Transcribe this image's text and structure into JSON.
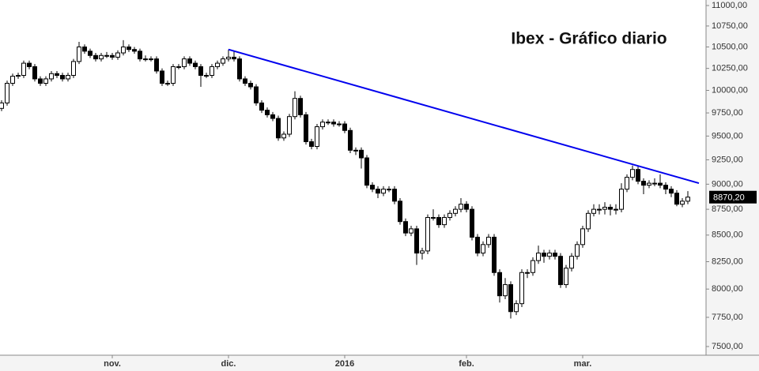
{
  "chart_data": {
    "type": "candlestick",
    "title": "Ibex - Gráfico diario",
    "log_scale": true,
    "up_color": "#ffffff",
    "down_color": "#000000",
    "categories": [
      null,
      null,
      null,
      null,
      null,
      null,
      null,
      null,
      null,
      null,
      null,
      null,
      null,
      null,
      null,
      null,
      null,
      null,
      null,
      null,
      "nov.",
      null,
      null,
      null,
      null,
      null,
      null,
      null,
      null,
      null,
      null,
      null,
      null,
      null,
      null,
      null,
      null,
      null,
      null,
      null,
      null,
      "dic.",
      null,
      null,
      null,
      null,
      null,
      null,
      null,
      null,
      null,
      null,
      null,
      null,
      null,
      null,
      null,
      null,
      null,
      null,
      null,
      null,
      "2016",
      null,
      null,
      null,
      null,
      null,
      null,
      null,
      null,
      null,
      null,
      null,
      null,
      null,
      null,
      null,
      null,
      null,
      null,
      null,
      null,
      null,
      "feb.",
      null,
      null,
      null,
      null,
      null,
      null,
      null,
      null,
      null,
      null,
      null,
      null,
      null,
      null,
      null,
      null,
      null,
      null,
      null,
      null,
      "mar.",
      null,
      null,
      null,
      null,
      null,
      null,
      null,
      null,
      null,
      null,
      null,
      null,
      null,
      null,
      null,
      null,
      null,
      null,
      null
    ],
    "ohlc": [
      [
        9800,
        9890,
        9770,
        9860
      ],
      [
        9860,
        10110,
        9830,
        10080
      ],
      [
        10080,
        10190,
        10050,
        10160
      ],
      [
        10160,
        10200,
        10130,
        10170
      ],
      [
        10170,
        10340,
        10140,
        10310
      ],
      [
        10310,
        10340,
        10240,
        10270
      ],
      [
        10270,
        10300,
        10100,
        10130
      ],
      [
        10130,
        10160,
        10050,
        10080
      ],
      [
        10080,
        10160,
        10050,
        10130
      ],
      [
        10130,
        10220,
        10100,
        10190
      ],
      [
        10190,
        10220,
        10140,
        10170
      ],
      [
        10170,
        10200,
        10100,
        10130
      ],
      [
        10130,
        10200,
        10100,
        10170
      ],
      [
        10170,
        10360,
        10140,
        10330
      ],
      [
        10330,
        10560,
        10300,
        10500
      ],
      [
        10500,
        10530,
        10420,
        10450
      ],
      [
        10450,
        10480,
        10370,
        10400
      ],
      [
        10400,
        10430,
        10330,
        10360
      ],
      [
        10360,
        10430,
        10330,
        10400
      ],
      [
        10400,
        10440,
        10370,
        10400
      ],
      [
        10400,
        10430,
        10350,
        10380
      ],
      [
        10380,
        10460,
        10350,
        10430
      ],
      [
        10430,
        10580,
        10400,
        10500
      ],
      [
        10500,
        10530,
        10440,
        10470
      ],
      [
        10470,
        10500,
        10420,
        10450
      ],
      [
        10450,
        10480,
        10330,
        10360
      ],
      [
        10360,
        10400,
        10330,
        10360
      ],
      [
        10360,
        10390,
        10330,
        10360
      ],
      [
        10360,
        10390,
        10190,
        10220
      ],
      [
        10220,
        10250,
        10050,
        10080
      ],
      [
        10080,
        10110,
        10050,
        10080
      ],
      [
        10080,
        10300,
        10050,
        10270
      ],
      [
        10270,
        10300,
        10240,
        10270
      ],
      [
        10270,
        10390,
        10240,
        10360
      ],
      [
        10360,
        10390,
        10280,
        10310
      ],
      [
        10310,
        10340,
        10240,
        10270
      ],
      [
        10270,
        10300,
        10040,
        10170
      ],
      [
        10170,
        10200,
        10140,
        10170
      ],
      [
        10170,
        10300,
        10140,
        10270
      ],
      [
        10270,
        10340,
        10240,
        10310
      ],
      [
        10310,
        10390,
        10280,
        10360
      ],
      [
        10360,
        10470,
        10330,
        10380
      ],
      [
        10380,
        10450,
        10330,
        10360
      ],
      [
        10360,
        10390,
        10100,
        10130
      ],
      [
        10130,
        10160,
        10050,
        10080
      ],
      [
        10080,
        10110,
        10010,
        10040
      ],
      [
        10040,
        10070,
        9830,
        9860
      ],
      [
        9860,
        9890,
        9750,
        9780
      ],
      [
        9780,
        9810,
        9700,
        9730
      ],
      [
        9730,
        9760,
        9660,
        9690
      ],
      [
        9690,
        9720,
        9450,
        9480
      ],
      [
        9480,
        9550,
        9450,
        9520
      ],
      [
        9520,
        9740,
        9490,
        9710
      ],
      [
        9710,
        9990,
        9680,
        9910
      ],
      [
        9910,
        9940,
        9700,
        9730
      ],
      [
        9730,
        9760,
        9410,
        9440
      ],
      [
        9440,
        9470,
        9360,
        9390
      ],
      [
        9390,
        9630,
        9360,
        9600
      ],
      [
        9600,
        9680,
        9570,
        9650
      ],
      [
        9650,
        9680,
        9620,
        9650
      ],
      [
        9650,
        9680,
        9600,
        9630
      ],
      [
        9630,
        9660,
        9600,
        9630
      ],
      [
        9630,
        9660,
        9530,
        9560
      ],
      [
        9560,
        9590,
        9320,
        9350
      ],
      [
        9350,
        9380,
        9300,
        9350
      ],
      [
        9350,
        9380,
        9160,
        9270
      ],
      [
        9270,
        9300,
        8960,
        8990
      ],
      [
        8990,
        9020,
        8920,
        8950
      ],
      [
        8950,
        8980,
        8860,
        8910
      ],
      [
        8910,
        8980,
        8880,
        8950
      ],
      [
        8950,
        8980,
        8920,
        8950
      ],
      [
        8950,
        8980,
        8800,
        8830
      ],
      [
        8830,
        8860,
        8600,
        8630
      ],
      [
        8630,
        8660,
        8490,
        8520
      ],
      [
        8520,
        8590,
        8490,
        8560
      ],
      [
        8560,
        8590,
        8220,
        8330
      ],
      [
        8330,
        8380,
        8270,
        8350
      ],
      [
        8350,
        8700,
        8320,
        8670
      ],
      [
        8670,
        8750,
        8640,
        8670
      ],
      [
        8670,
        8700,
        8570,
        8600
      ],
      [
        8600,
        8700,
        8570,
        8670
      ],
      [
        8670,
        8740,
        8640,
        8710
      ],
      [
        8710,
        8780,
        8680,
        8750
      ],
      [
        8750,
        8860,
        8720,
        8800
      ],
      [
        8800,
        8830,
        8720,
        8750
      ],
      [
        8750,
        8780,
        8450,
        8480
      ],
      [
        8480,
        8510,
        8300,
        8330
      ],
      [
        8330,
        8440,
        8300,
        8410
      ],
      [
        8410,
        8510,
        8380,
        8480
      ],
      [
        8480,
        8510,
        8120,
        8150
      ],
      [
        8150,
        8180,
        7880,
        7940
      ],
      [
        7940,
        8100,
        7910,
        8040
      ],
      [
        8040,
        8070,
        7740,
        7800
      ],
      [
        7800,
        7900,
        7770,
        7870
      ],
      [
        7870,
        8180,
        7840,
        8150
      ],
      [
        8150,
        8180,
        8100,
        8150
      ],
      [
        8150,
        8290,
        8120,
        8260
      ],
      [
        8260,
        8400,
        8230,
        8330
      ],
      [
        8330,
        8360,
        8240,
        8300
      ],
      [
        8300,
        8360,
        8270,
        8330
      ],
      [
        8330,
        8360,
        8270,
        8300
      ],
      [
        8300,
        8330,
        8010,
        8040
      ],
      [
        8040,
        8220,
        8010,
        8190
      ],
      [
        8190,
        8330,
        8160,
        8300
      ],
      [
        8300,
        8440,
        8270,
        8410
      ],
      [
        8410,
        8590,
        8380,
        8560
      ],
      [
        8560,
        8740,
        8530,
        8710
      ],
      [
        8710,
        8800,
        8680,
        8750
      ],
      [
        8750,
        8800,
        8700,
        8750
      ],
      [
        8750,
        8820,
        8700,
        8770
      ],
      [
        8770,
        8800,
        8690,
        8750
      ],
      [
        8750,
        8800,
        8700,
        8750
      ],
      [
        8750,
        9010,
        8720,
        8950
      ],
      [
        8950,
        9100,
        8920,
        9070
      ],
      [
        9070,
        9190,
        9040,
        9150
      ],
      [
        9150,
        9180,
        9000,
        9030
      ],
      [
        9030,
        9060,
        8900,
        8990
      ],
      [
        8990,
        9040,
        8960,
        9010
      ],
      [
        9010,
        9060,
        8980,
        9010
      ],
      [
        9010,
        9100,
        8960,
        8990
      ],
      [
        8990,
        9020,
        8900,
        8950
      ],
      [
        8950,
        8980,
        8870,
        8910
      ],
      [
        8910,
        8940,
        8780,
        8800
      ],
      [
        8800,
        8860,
        8770,
        8830
      ],
      [
        8830,
        8930,
        8800,
        8870.2
      ]
    ],
    "last_price": {
      "value": 8870.2,
      "label": "8870,20"
    },
    "trend_line": {
      "color": "#0000ee",
      "x": [
        41,
        126
      ],
      "y": [
        10470,
        9010
      ]
    },
    "ylim": [
      7500,
      11000
    ],
    "yticks": [
      {
        "value": 11000,
        "label": "11000,00"
      },
      {
        "value": 10750,
        "label": "10750,00"
      },
      {
        "value": 10500,
        "label": "10500,00"
      },
      {
        "value": 10250,
        "label": "10250,00"
      },
      {
        "value": 10000,
        "label": "10000,00"
      },
      {
        "value": 9750,
        "label": "9750,00"
      },
      {
        "value": 9500,
        "label": "9500,00"
      },
      {
        "value": 9250,
        "label": "9250,00"
      },
      {
        "value": 9000,
        "label": "9000,00"
      },
      {
        "value": 8750,
        "label": "8750,00"
      },
      {
        "value": 8500,
        "label": "8500,00"
      },
      {
        "value": 8250,
        "label": "8250,00"
      },
      {
        "value": 8000,
        "label": "8000,00"
      },
      {
        "value": 7750,
        "label": "7750,00"
      },
      {
        "value": 7500,
        "label": "7500,00"
      }
    ]
  }
}
